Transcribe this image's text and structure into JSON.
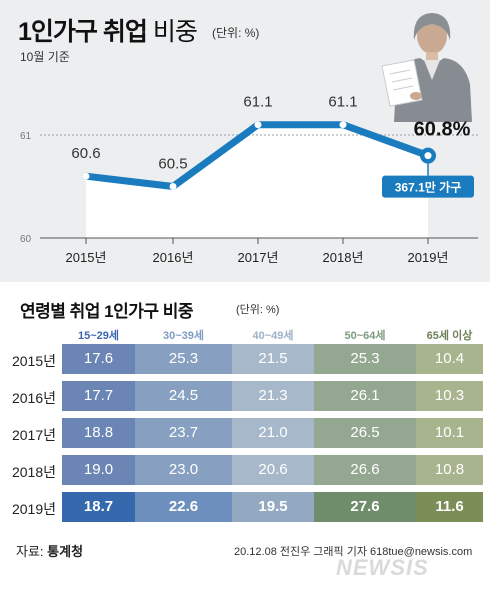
{
  "header": {
    "title_main": "1인가구 취업",
    "title_sub": "비중",
    "unit": "(단위: %)",
    "basis": "10월 기준"
  },
  "chart_data": [
    {
      "type": "line",
      "title": "1인가구 취업 비중",
      "unit": "%",
      "x": [
        "2015년",
        "2016년",
        "2017년",
        "2018년",
        "2019년"
      ],
      "series": [
        {
          "values": [
            60.6,
            60.5,
            61.1,
            61.1,
            60.8
          ]
        }
      ],
      "value_labels": [
        "60.6",
        "60.5",
        "61.1",
        "61.1",
        "60.8%"
      ],
      "y_ticks": [
        "61",
        "60"
      ],
      "ylim": [
        60,
        61.2
      ],
      "grid": true,
      "annotation": "367.1만 가구",
      "colors": {
        "line": "#1a7bbf",
        "area": "#ffffff",
        "callout": "#1a7bbf"
      }
    },
    {
      "type": "table",
      "title": "연령별 취업 1인가구 비중",
      "unit": "(단위: %)",
      "columns": [
        "15~29세",
        "30~39세",
        "40~49세",
        "50~64세",
        "65세 이상"
      ],
      "rows": [
        {
          "year": "2015년",
          "values": [
            "17.6",
            "25.3",
            "21.5",
            "25.3",
            "10.4"
          ]
        },
        {
          "year": "2016년",
          "values": [
            "17.7",
            "24.5",
            "21.3",
            "26.1",
            "10.3"
          ]
        },
        {
          "year": "2017년",
          "values": [
            "18.8",
            "23.7",
            "21.0",
            "26.5",
            "10.1"
          ]
        },
        {
          "year": "2018년",
          "values": [
            "19.0",
            "23.0",
            "20.6",
            "26.6",
            "10.8"
          ]
        },
        {
          "year": "2019년",
          "values": [
            "18.7",
            "22.6",
            "19.5",
            "27.6",
            "11.6"
          ]
        }
      ],
      "header_colors": [
        "#3a67b4",
        "#7f9cc4",
        "#9fb1c7",
        "#7f9a7f",
        "#6f8058"
      ],
      "cell_colors": [
        "#6b86b4",
        "#87a0c2",
        "#a7b8cb",
        "#94a891",
        "#a8b48e"
      ],
      "last_row_colors": [
        "#3668ad",
        "#6d8fbe",
        "#93a9c2",
        "#6f8d6a",
        "#7c8e57"
      ]
    }
  ],
  "footer": {
    "source_label": "자료:",
    "source_name": "통계청",
    "credit": "20.12.08 전진우 그래픽 기자 618tue@newsis.com",
    "logo": "NEWSIS"
  }
}
